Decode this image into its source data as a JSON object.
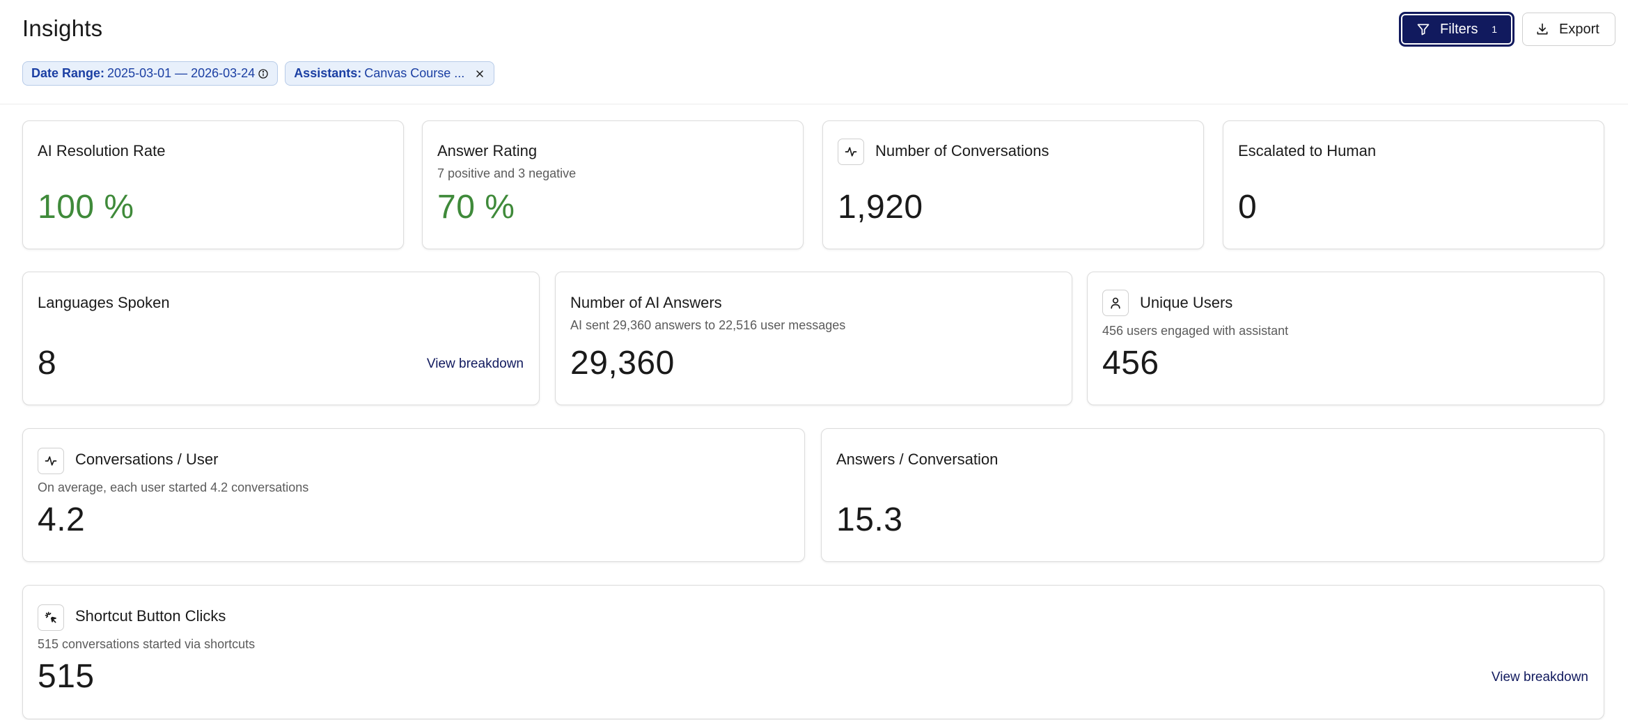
{
  "page": {
    "title": "Insights"
  },
  "header": {
    "filters_label": "Filters",
    "filters_count": "1",
    "export_label": "Export"
  },
  "chips": [
    {
      "key": "Date Range:",
      "value": "2025-03-01 — 2026-03-24"
    },
    {
      "key": "Assistants:",
      "value": "Canvas Course ..."
    }
  ],
  "cards": {
    "ai_resolution": {
      "title": "AI Resolution Rate",
      "value": "100 %"
    },
    "answer_rating": {
      "title": "Answer Rating",
      "subtitle": "7 positive and 3 negative",
      "value": "70 %"
    },
    "conversations": {
      "title": "Number of Conversations",
      "value": "1,920"
    },
    "escalated": {
      "title": "Escalated to Human",
      "value": "0"
    },
    "languages": {
      "title": "Languages Spoken",
      "value": "8",
      "link": "View breakdown"
    },
    "ai_answers": {
      "title": "Number of AI Answers",
      "subtitle": "AI sent 29,360 answers to 22,516 user messages",
      "value": "29,360"
    },
    "unique_users": {
      "title": "Unique Users",
      "subtitle": "456 users engaged with assistant",
      "value": "456"
    },
    "conv_per_user": {
      "title": "Conversations / User",
      "subtitle": "On average, each user started 4.2 conversations",
      "value": "4.2"
    },
    "answers_per_conv": {
      "title": "Answers / Conversation",
      "value": "15.3"
    },
    "shortcut_clicks": {
      "title": "Shortcut Button Clicks",
      "subtitle": "515 conversations started via shortcuts",
      "value": "515",
      "link": "View breakdown"
    }
  },
  "colors": {
    "accent": "#111a5e",
    "positive": "#3f8a3a",
    "chip_bg": "#e8f0fb",
    "chip_text": "#1b3fa3"
  },
  "icons": [
    "filter-icon",
    "download-icon",
    "info-icon",
    "close-icon",
    "activity-icon",
    "user-icon",
    "sparkle-click-icon"
  ]
}
